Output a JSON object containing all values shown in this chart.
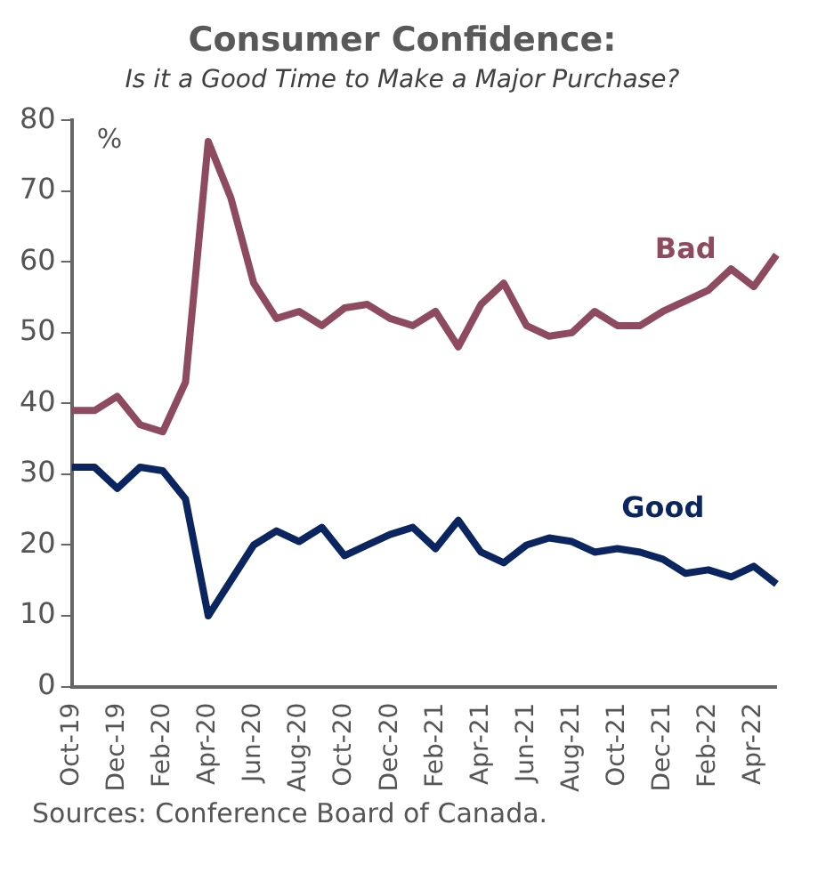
{
  "chart_data": {
    "type": "line",
    "title": "Consumer Confidence:",
    "subtitle": "Is it a Good Time to Make a Major Purchase?",
    "ylabel": "%",
    "categories": [
      "Oct-19",
      null,
      "Dec-19",
      null,
      "Feb-20",
      null,
      "Apr-20",
      null,
      "Jun-20",
      null,
      "Aug-20",
      null,
      "Oct-20",
      null,
      "Dec-20",
      null,
      "Feb-21",
      null,
      "Apr-21",
      null,
      "Jun-21",
      null,
      "Aug-21",
      null,
      "Oct-21",
      null,
      "Dec-21",
      null,
      "Feb-22",
      null,
      "Apr-22",
      null
    ],
    "series": [
      {
        "name": "Bad",
        "color": "#8e4a5e",
        "values": [
          39,
          39,
          41,
          37,
          36,
          43,
          77,
          69,
          57,
          52,
          53,
          51,
          53.5,
          54,
          52,
          51,
          53,
          48,
          54,
          57,
          51,
          49.5,
          50,
          53,
          51,
          51,
          53,
          54.5,
          56,
          59,
          56.5,
          61
        ]
      },
      {
        "name": "Good",
        "color": "#0a2560",
        "values": [
          31,
          31,
          28,
          31,
          30.5,
          26.5,
          10,
          15,
          20,
          22,
          20.5,
          22.5,
          18.5,
          20,
          21.5,
          22.5,
          19.5,
          23.5,
          19,
          17.5,
          20,
          21,
          20.5,
          19,
          19.5,
          19,
          18,
          16,
          16.5,
          15.5,
          17,
          14.5
        ]
      }
    ],
    "ylim": [
      0,
      80
    ],
    "yticks": [
      0,
      10,
      20,
      30,
      40,
      50,
      60,
      70,
      80
    ],
    "grid": false,
    "legend": false,
    "marker": "none",
    "line_style": "solid",
    "annotations": [
      "Sources: Conference Board of Canada."
    ]
  }
}
